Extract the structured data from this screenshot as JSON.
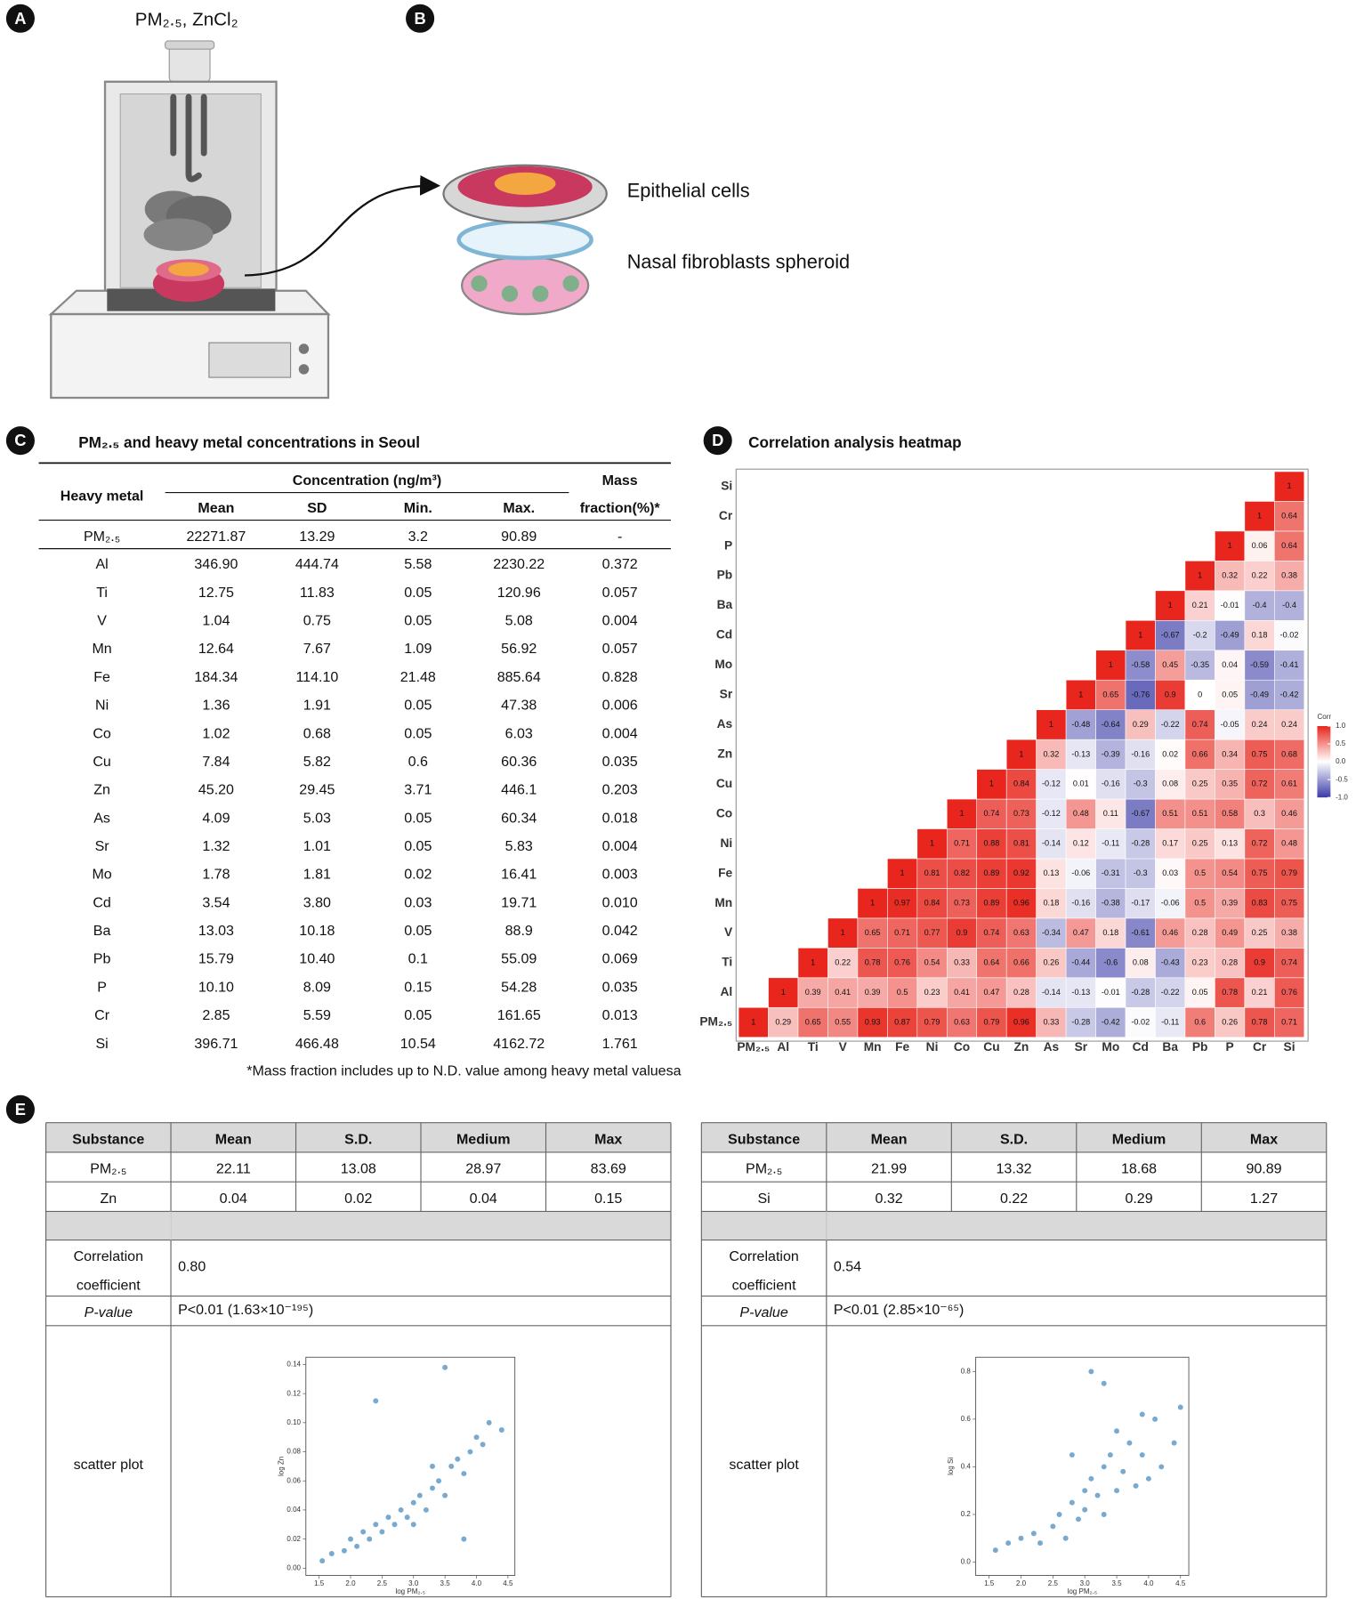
{
  "panel_labels": [
    "A",
    "B",
    "C",
    "D",
    "E"
  ],
  "panel_a": {
    "label": "PM₂.₅, ZnCl₂"
  },
  "panel_b": {
    "labels": [
      "Epithelial cells",
      "Nasal fibroblasts spheroid"
    ]
  },
  "table_c": {
    "title": "PM₂.₅  and heavy metal concentrations in Seoul",
    "header": {
      "metal": "Heavy metal",
      "concentration": "Concentration (ng/m³)",
      "mass": "Mass",
      "fraction": "fraction(%)*",
      "columns": [
        "Mean",
        "SD",
        "Min.",
        "Max."
      ]
    },
    "rows": [
      [
        "PM₂.₅",
        "22271.87",
        "13.29",
        "3.2",
        "90.89",
        "-"
      ],
      [
        "Al",
        "346.90",
        "444.74",
        "5.58",
        "2230.22",
        "0.372"
      ],
      [
        "Ti",
        "12.75",
        "11.83",
        "0.05",
        "120.96",
        "0.057"
      ],
      [
        "V",
        "1.04",
        "0.75",
        "0.05",
        "5.08",
        "0.004"
      ],
      [
        "Mn",
        "12.64",
        "7.67",
        "1.09",
        "56.92",
        "0.057"
      ],
      [
        "Fe",
        "184.34",
        "114.10",
        "21.48",
        "885.64",
        "0.828"
      ],
      [
        "Ni",
        "1.36",
        "1.91",
        "0.05",
        "47.38",
        "0.006"
      ],
      [
        "Co",
        "1.02",
        "0.68",
        "0.05",
        "6.03",
        "0.004"
      ],
      [
        "Cu",
        "7.84",
        "5.82",
        "0.6",
        "60.36",
        "0.035"
      ],
      [
        "Zn",
        "45.20",
        "29.45",
        "3.71",
        "446.1",
        "0.203"
      ],
      [
        "As",
        "4.09",
        "5.03",
        "0.05",
        "60.34",
        "0.018"
      ],
      [
        "Sr",
        "1.32",
        "1.01",
        "0.05",
        "5.83",
        "0.004"
      ],
      [
        "Mo",
        "1.78",
        "1.81",
        "0.02",
        "16.41",
        "0.003"
      ],
      [
        "Cd",
        "3.54",
        "3.80",
        "0.03",
        "19.71",
        "0.010"
      ],
      [
        "Ba",
        "13.03",
        "10.18",
        "0.05",
        "88.9",
        "0.042"
      ],
      [
        "Pb",
        "15.79",
        "10.40",
        "0.1",
        "55.09",
        "0.069"
      ],
      [
        "P",
        "10.10",
        "8.09",
        "0.15",
        "54.28",
        "0.035"
      ],
      [
        "Cr",
        "2.85",
        "5.59",
        "0.05",
        "161.65",
        "0.013"
      ],
      [
        "Si",
        "396.71",
        "466.48",
        "10.54",
        "4162.72",
        "1.761"
      ]
    ],
    "footnote": "*Mass fraction includes up to N.D. value among heavy metal valuesa"
  },
  "chart_data": [
    {
      "type": "heatmap",
      "title": "Correlation analysis heatmap",
      "categories": [
        "PM₂.₅",
        "Al",
        "Ti",
        "V",
        "Mn",
        "Fe",
        "Ni",
        "Co",
        "Cu",
        "Zn",
        "As",
        "Sr",
        "Mo",
        "Cd",
        "Ba",
        "Pb",
        "P",
        "Cr",
        "Si"
      ],
      "values": [
        [
          1,
          0.29,
          0.65,
          0.55,
          0.93,
          0.87,
          0.79,
          0.63,
          0.79,
          0.96,
          0.33,
          -0.28,
          -0.42,
          -0.02,
          -0.11,
          0.6,
          0.26,
          0.78,
          0.71
        ],
        [
          null,
          1,
          0.39,
          0.41,
          0.39,
          0.5,
          0.23,
          0.41,
          0.47,
          0.28,
          -0.14,
          -0.13,
          -0.01,
          -0.28,
          -0.22,
          0.05,
          0.78,
          0.21,
          0.76
        ],
        [
          null,
          null,
          1,
          0.22,
          0.78,
          0.76,
          0.54,
          0.33,
          0.64,
          0.66,
          0.26,
          -0.44,
          -0.6,
          0.08,
          -0.43,
          0.23,
          0.28,
          0.9,
          0.74
        ],
        [
          null,
          null,
          null,
          1,
          0.65,
          0.71,
          0.77,
          0.9,
          0.74,
          0.63,
          -0.34,
          0.47,
          0.18,
          -0.61,
          0.46,
          0.28,
          0.49,
          0.25,
          0.38
        ],
        [
          null,
          null,
          null,
          null,
          1,
          0.97,
          0.84,
          0.73,
          0.89,
          0.96,
          0.18,
          -0.16,
          -0.38,
          -0.17,
          -0.06,
          0.5,
          0.39,
          0.83,
          0.75
        ],
        [
          null,
          null,
          null,
          null,
          null,
          1,
          0.81,
          0.82,
          0.89,
          0.92,
          0.13,
          -0.06,
          -0.31,
          -0.3,
          0.03,
          0.5,
          0.54,
          0.75,
          0.79
        ],
        [
          null,
          null,
          null,
          null,
          null,
          null,
          1,
          0.71,
          0.88,
          0.81,
          -0.14,
          0.12,
          -0.11,
          -0.28,
          0.17,
          0.25,
          0.13,
          0.72,
          0.48
        ],
        [
          null,
          null,
          null,
          null,
          null,
          null,
          null,
          1,
          0.74,
          0.73,
          -0.12,
          0.48,
          0.11,
          -0.67,
          0.51,
          0.51,
          0.58,
          0.3,
          0.46
        ],
        [
          null,
          null,
          null,
          null,
          null,
          null,
          null,
          null,
          1,
          0.84,
          -0.12,
          0.01,
          -0.16,
          -0.3,
          0.08,
          0.25,
          0.35,
          0.72,
          0.61
        ],
        [
          null,
          null,
          null,
          null,
          null,
          null,
          null,
          null,
          null,
          1,
          0.32,
          -0.13,
          -0.39,
          -0.16,
          0.02,
          0.66,
          0.34,
          0.75,
          0.68
        ],
        [
          null,
          null,
          null,
          null,
          null,
          null,
          null,
          null,
          null,
          null,
          1,
          -0.48,
          -0.64,
          0.29,
          -0.22,
          0.74,
          -0.05,
          0.24,
          0.24
        ],
        [
          null,
          null,
          null,
          null,
          null,
          null,
          null,
          null,
          null,
          null,
          null,
          1,
          0.65,
          -0.76,
          0.9,
          0,
          0.05,
          -0.49,
          -0.42
        ],
        [
          null,
          null,
          null,
          null,
          null,
          null,
          null,
          null,
          null,
          null,
          null,
          null,
          1,
          -0.58,
          0.45,
          -0.35,
          0.04,
          -0.59,
          -0.41
        ],
        [
          null,
          null,
          null,
          null,
          null,
          null,
          null,
          null,
          null,
          null,
          null,
          null,
          null,
          1,
          -0.67,
          -0.2,
          -0.49,
          0.18,
          -0.02
        ],
        [
          null,
          null,
          null,
          null,
          null,
          null,
          null,
          null,
          null,
          null,
          null,
          null,
          null,
          null,
          1,
          0.21,
          -0.01,
          -0.4,
          -0.4
        ],
        [
          null,
          null,
          null,
          null,
          null,
          null,
          null,
          null,
          null,
          null,
          null,
          null,
          null,
          null,
          null,
          1,
          0.32,
          0.22,
          0.38
        ],
        [
          null,
          null,
          null,
          null,
          null,
          null,
          null,
          null,
          null,
          null,
          null,
          null,
          null,
          null,
          null,
          null,
          1,
          0.06,
          0.64
        ],
        [
          null,
          null,
          null,
          null,
          null,
          null,
          null,
          null,
          null,
          null,
          null,
          null,
          null,
          null,
          null,
          null,
          null,
          1,
          0.64
        ],
        [
          null,
          null,
          null,
          null,
          null,
          null,
          null,
          null,
          null,
          null,
          null,
          null,
          null,
          null,
          null,
          null,
          null,
          null,
          1
        ]
      ],
      "colorbar_title": "Corr",
      "colors": {
        "low": "#3b3ba8",
        "mid": "#ffffff",
        "high": "#e8261d"
      },
      "clim": [
        -1,
        1
      ],
      "colorbar_ticks": [
        {
          "value": 1,
          "label": "1.0"
        },
        0.5,
        {
          "value": 0,
          "label": "0.0"
        },
        -0.5,
        {
          "value": -1,
          "label": "-1.0"
        }
      ]
    },
    {
      "type": "scatter",
      "x_label": "log PM₂.₅",
      "y_label": "log Zn",
      "color": "#2f7bb6",
      "xlim": [
        1.29,
        4.61
      ],
      "ylim": [
        -0.005,
        0.145
      ],
      "xticks": [
        1.5,
        {
          "value": 2,
          "label": "2.0"
        },
        2.5,
        {
          "value": 3,
          "label": "3.0"
        },
        3.5,
        {
          "value": 4,
          "label": "4.0"
        },
        4.5
      ],
      "yticks": [
        {
          "value": 0,
          "label": "0.00"
        },
        0.02,
        0.04,
        0.06,
        0.08,
        {
          "value": 0.1,
          "label": "0.10"
        },
        0.12,
        0.14
      ],
      "x": [
        1.55,
        1.7,
        1.9,
        2.0,
        2.1,
        2.2,
        2.3,
        2.4,
        2.5,
        2.6,
        2.7,
        2.8,
        2.9,
        3.0,
        3.0,
        3.1,
        3.2,
        3.3,
        3.4,
        3.5,
        3.6,
        3.7,
        3.8,
        3.9,
        4.0,
        4.2,
        4.4,
        2.4,
        3.5,
        3.8,
        4.1,
        3.3
      ],
      "y": [
        0.005,
        0.01,
        0.012,
        0.02,
        0.015,
        0.025,
        0.02,
        0.03,
        0.025,
        0.035,
        0.03,
        0.04,
        0.035,
        0.045,
        0.03,
        0.05,
        0.04,
        0.055,
        0.06,
        0.05,
        0.07,
        0.075,
        0.065,
        0.08,
        0.09,
        0.1,
        0.095,
        0.115,
        0.138,
        0.02,
        0.085,
        0.07
      ]
    },
    {
      "type": "scatter",
      "x_label": "log PM₂.₅",
      "y_label": "log Si",
      "color": "#2f7bb6",
      "xlim": [
        1.29,
        4.63
      ],
      "ylim": [
        -0.056,
        0.86
      ],
      "xticks": [
        1.5,
        {
          "value": 2,
          "label": "2.0"
        },
        2.5,
        {
          "value": 3,
          "label": "3.0"
        },
        3.5,
        {
          "value": 4,
          "label": "4.0"
        },
        4.5
      ],
      "yticks": [
        {
          "value": 0,
          "label": "0.0"
        },
        0.2,
        0.4,
        0.6,
        0.8
      ],
      "x": [
        1.6,
        1.8,
        2.0,
        2.2,
        2.3,
        2.5,
        2.6,
        2.7,
        2.8,
        2.9,
        3.0,
        3.0,
        3.1,
        3.2,
        3.3,
        3.3,
        3.4,
        3.5,
        3.5,
        3.6,
        3.7,
        3.8,
        3.9,
        4.0,
        4.1,
        4.2,
        4.4,
        4.5,
        3.1,
        3.3,
        2.8,
        3.9
      ],
      "y": [
        0.05,
        0.08,
        0.1,
        0.12,
        0.08,
        0.15,
        0.2,
        0.1,
        0.25,
        0.18,
        0.3,
        0.22,
        0.35,
        0.28,
        0.4,
        0.2,
        0.45,
        0.3,
        0.55,
        0.38,
        0.5,
        0.32,
        0.45,
        0.35,
        0.6,
        0.4,
        0.5,
        0.65,
        0.8,
        0.75,
        0.45,
        0.62
      ]
    }
  ],
  "table_e": [
    {
      "header": [
        "Substance",
        "Mean",
        "S.D.",
        "Medium",
        "Max"
      ],
      "rows": [
        [
          "PM₂.₅",
          "22.11",
          "13.08",
          "28.97",
          "83.69"
        ],
        [
          "Zn",
          "0.04",
          "0.02",
          "0.04",
          "0.15"
        ]
      ],
      "correlation_label": [
        "Correlation",
        "coefficient"
      ],
      "correlation": "0.80",
      "p_label": "P-value",
      "p_value": "P<0.01 (1.63×10⁻¹⁹⁵)",
      "scatter_label": "scatter plot"
    },
    {
      "header": [
        "Substance",
        "Mean",
        "S.D.",
        "Medium",
        "Max"
      ],
      "rows": [
        [
          "PM₂.₅",
          "21.99",
          "13.32",
          "18.68",
          "90.89"
        ],
        [
          "Si",
          "0.32",
          "0.22",
          "0.29",
          "1.27"
        ]
      ],
      "correlation_label": [
        "Correlation",
        "coefficient"
      ],
      "correlation": "0.54",
      "p_label": "P-value",
      "p_value": "P<0.01 (2.85×10⁻⁶⁵)",
      "scatter_label": "scatter plot"
    }
  ]
}
